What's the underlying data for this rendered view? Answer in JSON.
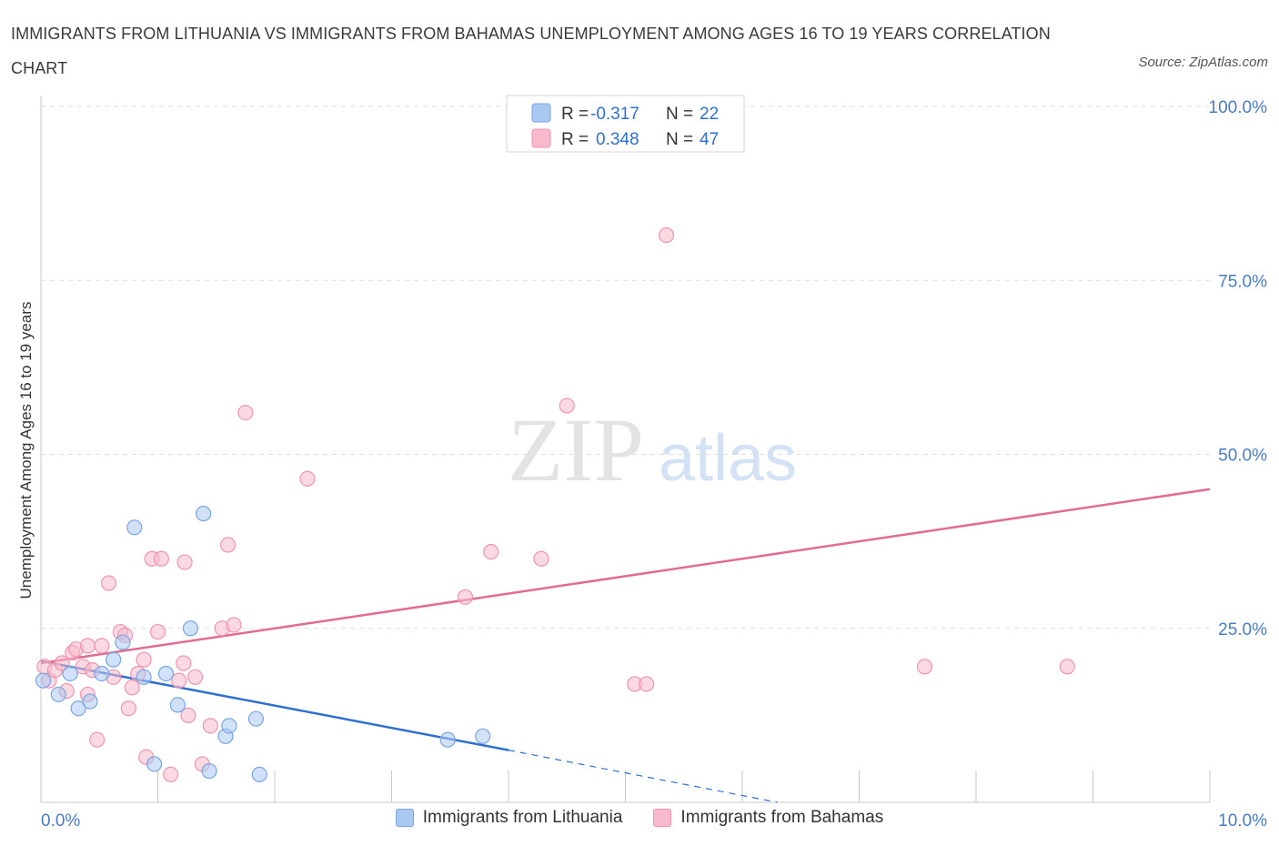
{
  "title": "IMMIGRANTS FROM LITHUANIA VS IMMIGRANTS FROM BAHAMAS UNEMPLOYMENT AMONG AGES 16 TO 19 YEARS CORRELATION CHART",
  "source": "Source: ZipAtlas.com",
  "watermark": {
    "zip": "ZIP",
    "atlas": "atlas"
  },
  "colors": {
    "series1_fill": "#a9c8f2",
    "series1_stroke": "#7aa5e0",
    "series1_line": "#2f6fd0",
    "series2_fill": "#f7b9cb",
    "series2_stroke": "#ee95b0",
    "series2_line": "#e26b93",
    "axis_label": "#4a7cc4",
    "grid": "#dddddd"
  },
  "legend": {
    "rows": [
      {
        "r_label": "R =",
        "r_value": "-0.317",
        "n_label": "N =",
        "n_value": "22"
      },
      {
        "r_label": "R =",
        "r_value": "0.348",
        "n_label": "N =",
        "n_value": "47"
      }
    ]
  },
  "chart_data": {
    "type": "scatter",
    "title": "IMMIGRANTS FROM LITHUANIA VS IMMIGRANTS FROM BAHAMAS UNEMPLOYMENT AMONG AGES 16 TO 19 YEARS CORRELATION CHART",
    "xlabel": "",
    "ylabel": "Unemployment Among Ages 16 to 19 years",
    "xlim": [
      0,
      10
    ],
    "ylim": [
      0,
      100
    ],
    "x_tick_labels": [
      "0.0%",
      "10.0%"
    ],
    "y_ticks": [
      25,
      50,
      75,
      100
    ],
    "y_tick_labels": [
      "25.0%",
      "50.0%",
      "75.0%",
      "100.0%"
    ],
    "grid": true,
    "legend_position": "top-center",
    "series": [
      {
        "name": "Immigrants from Lithuania",
        "R": -0.317,
        "N": 22,
        "trend": {
          "x0": 0,
          "y0": 20.3,
          "x1": 4.0,
          "y1": 7.5,
          "dash_to_x": 6.3,
          "dash_to_y": 0
        },
        "points": [
          [
            0.02,
            17.5
          ],
          [
            0.15,
            15.5
          ],
          [
            0.25,
            18.5
          ],
          [
            0.32,
            13.5
          ],
          [
            0.42,
            14.5
          ],
          [
            0.52,
            18.5
          ],
          [
            0.62,
            20.5
          ],
          [
            0.7,
            23.0
          ],
          [
            0.8,
            39.5
          ],
          [
            0.88,
            18.0
          ],
          [
            0.97,
            5.5
          ],
          [
            1.07,
            18.5
          ],
          [
            1.17,
            14.0
          ],
          [
            1.28,
            25.0
          ],
          [
            1.39,
            41.5
          ],
          [
            1.44,
            4.5
          ],
          [
            1.58,
            9.5
          ],
          [
            1.61,
            11.0
          ],
          [
            1.84,
            12.0
          ],
          [
            1.87,
            4.0
          ],
          [
            3.48,
            9.0
          ],
          [
            3.78,
            9.5
          ]
        ]
      },
      {
        "name": "Immigrants from Bahamas",
        "R": 0.348,
        "N": 47,
        "trend": {
          "x0": 0,
          "y0": 20.0,
          "x1": 10,
          "y1": 45.0
        },
        "points": [
          [
            0.03,
            19.5
          ],
          [
            0.07,
            17.5
          ],
          [
            0.12,
            19.0
          ],
          [
            0.18,
            20.0
          ],
          [
            0.22,
            16.0
          ],
          [
            0.27,
            21.5
          ],
          [
            0.3,
            22.0
          ],
          [
            0.36,
            19.5
          ],
          [
            0.4,
            15.5
          ],
          [
            0.44,
            19.0
          ],
          [
            0.4,
            22.5
          ],
          [
            0.48,
            9.0
          ],
          [
            0.52,
            22.5
          ],
          [
            0.58,
            31.5
          ],
          [
            0.62,
            18.0
          ],
          [
            0.68,
            24.5
          ],
          [
            0.72,
            24.0
          ],
          [
            0.75,
            13.5
          ],
          [
            0.78,
            16.5
          ],
          [
            0.83,
            18.5
          ],
          [
            0.88,
            20.5
          ],
          [
            0.9,
            6.5
          ],
          [
            0.95,
            35.0
          ],
          [
            1.03,
            35.0
          ],
          [
            1.11,
            4.0
          ],
          [
            1.18,
            17.5
          ],
          [
            1.22,
            20.0
          ],
          [
            1.26,
            12.5
          ],
          [
            1.32,
            18.0
          ],
          [
            1.38,
            5.5
          ],
          [
            1.45,
            11.0
          ],
          [
            1.55,
            25.0
          ],
          [
            1.6,
            37.0
          ],
          [
            1.65,
            25.5
          ],
          [
            1.75,
            56.0
          ],
          [
            2.28,
            46.5
          ],
          [
            3.63,
            29.5
          ],
          [
            3.85,
            36.0
          ],
          [
            4.28,
            35.0
          ],
          [
            4.5,
            57.0
          ],
          [
            5.08,
            17.0
          ],
          [
            5.18,
            17.0
          ],
          [
            5.35,
            81.5
          ],
          [
            7.56,
            19.5
          ],
          [
            8.78,
            19.5
          ],
          [
            1.23,
            34.5
          ],
          [
            1.0,
            24.5
          ]
        ]
      }
    ]
  }
}
